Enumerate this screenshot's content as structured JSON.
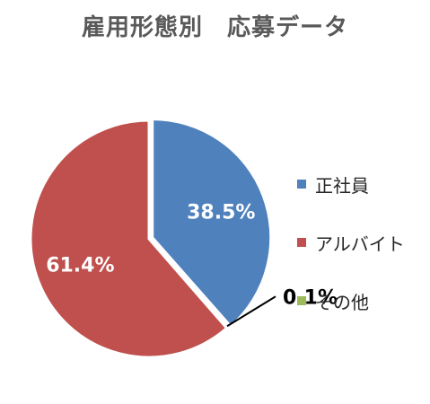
{
  "chart_data": {
    "type": "pie",
    "title": "雇用形態別　応募データ",
    "slices": [
      {
        "name": "正社員",
        "value": 38.5,
        "label": "38.5%",
        "color": "#4F81BD",
        "label_color": "#ffffff"
      },
      {
        "name": "その他",
        "value": 0.1,
        "label": "0.1%",
        "color": "#9BBB59",
        "label_color": "#000000"
      },
      {
        "name": "アルバイト",
        "value": 61.4,
        "label": "61.4%",
        "color": "#C0504D",
        "label_color": "#ffffff"
      }
    ],
    "legend": {
      "position": "right",
      "items": [
        {
          "name": "正社員",
          "color": "#4F81BD"
        },
        {
          "name": "アルバイト",
          "color": "#C0504D"
        },
        {
          "name": "その他",
          "color": "#9BBB59"
        }
      ]
    },
    "start_angle_deg": 0,
    "direction": "clockwise",
    "exploded_slice": "正社員"
  }
}
